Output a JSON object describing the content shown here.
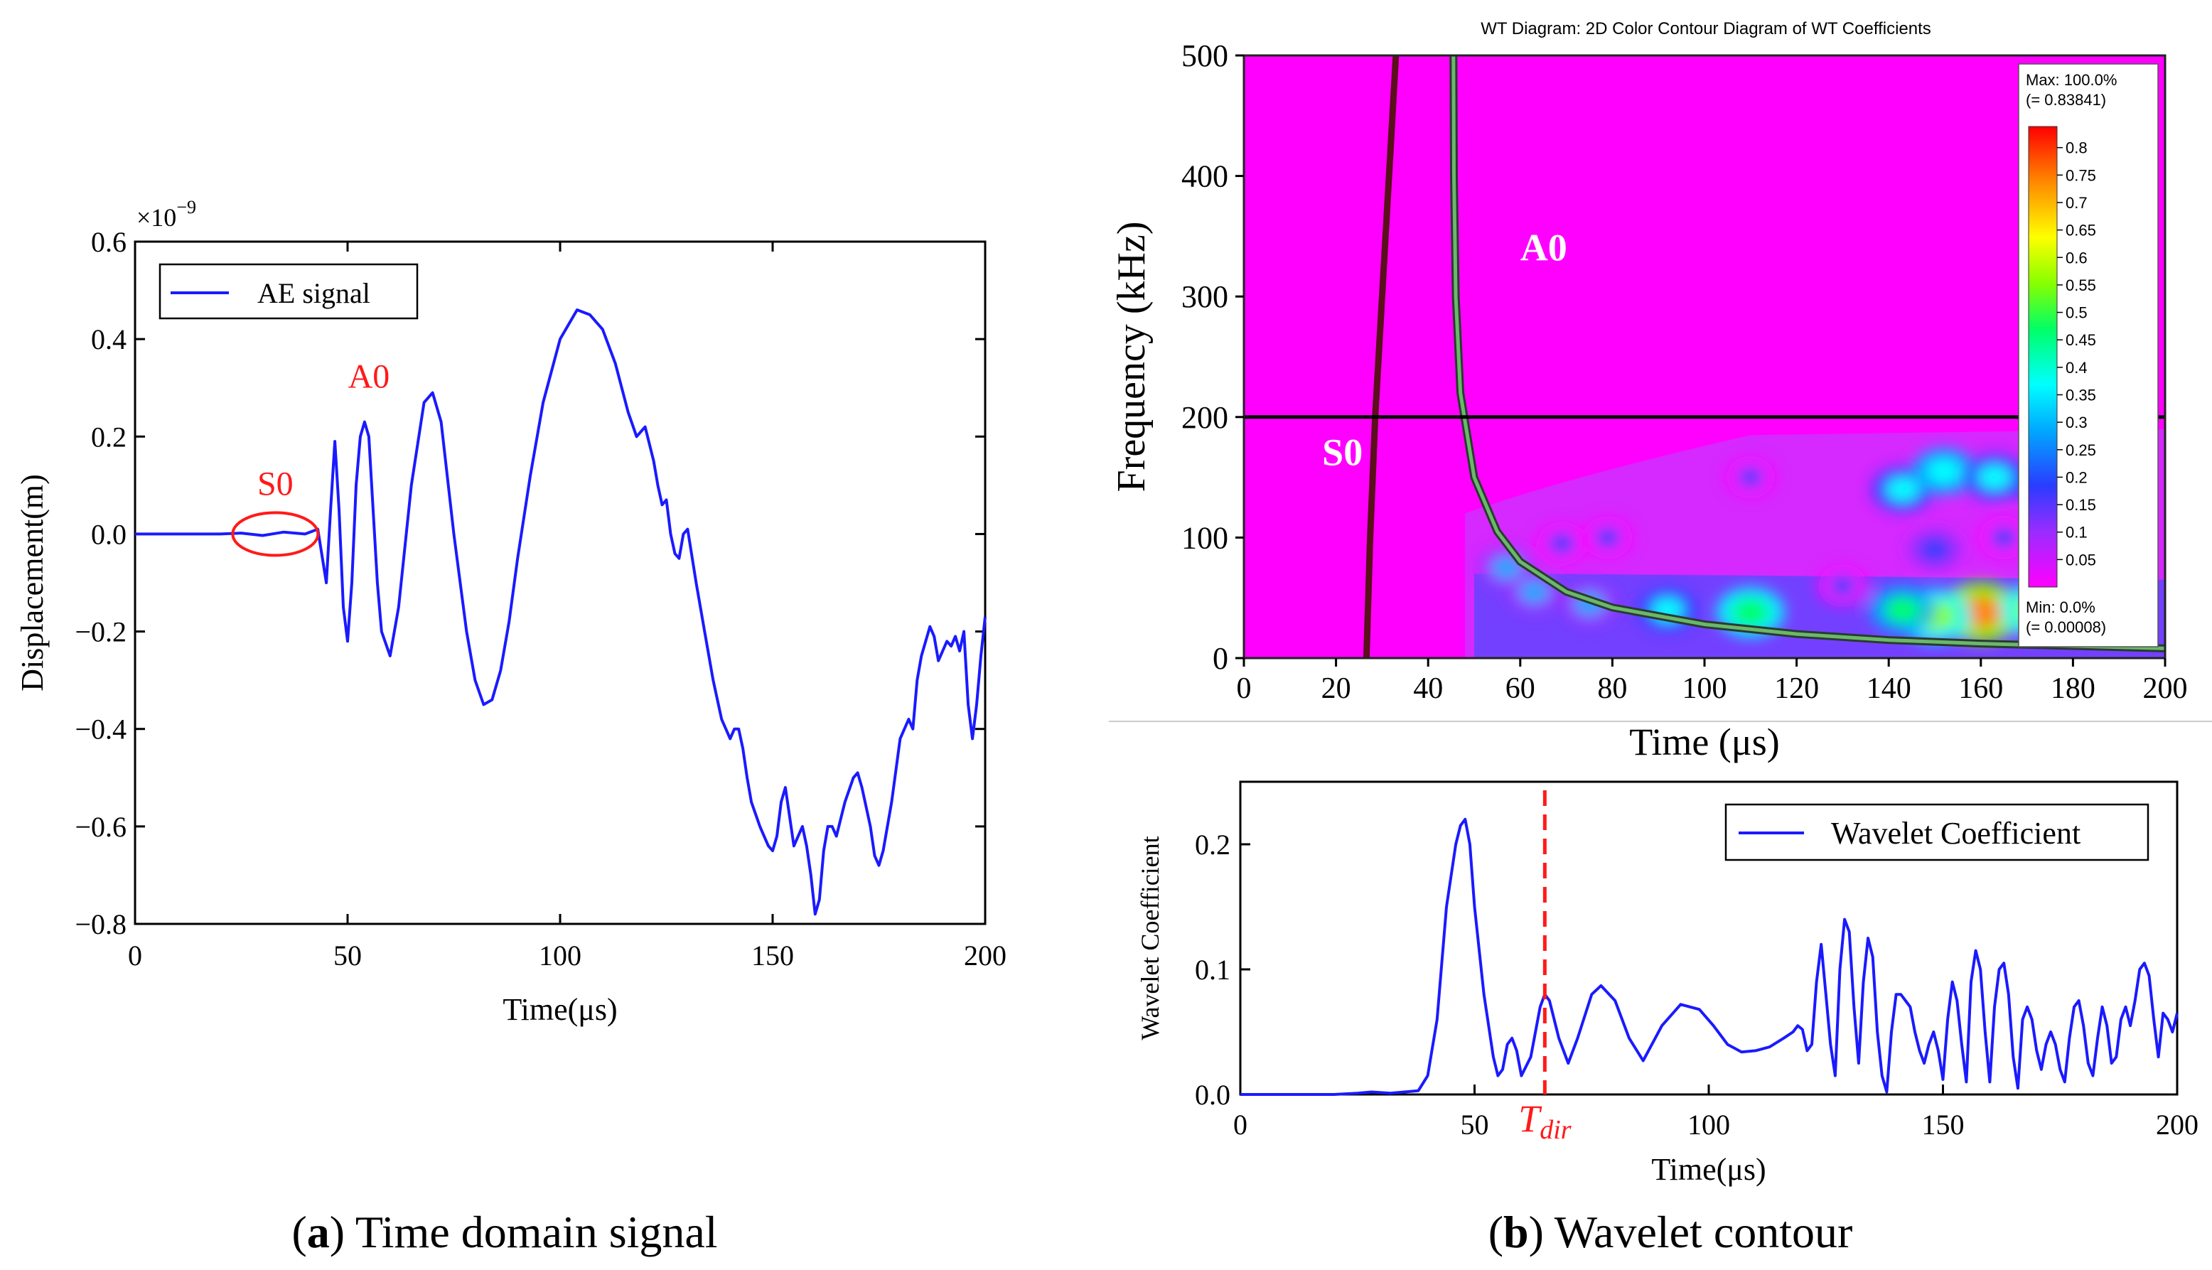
{
  "captions": {
    "a_letter": "a",
    "a_text": " Time domain signal",
    "b_letter": "b",
    "b_text": " Wavelet contour"
  },
  "chart_data": [
    {
      "id": "time_domain",
      "type": "line",
      "xlabel": "Time(μs)",
      "ylabel": "Displacement(m)",
      "exponent_label": "×10",
      "exponent_power": "−9",
      "xlim": [
        0,
        200
      ],
      "ylim": [
        -0.8,
        0.6
      ],
      "xticks": [
        0,
        50,
        100,
        150,
        200
      ],
      "yticks": [
        -0.8,
        -0.6,
        -0.4,
        -0.2,
        0.0,
        0.2,
        0.4,
        0.6
      ],
      "xtick_labels": [
        "0",
        "50",
        "100",
        "150",
        "200"
      ],
      "ytick_labels": [
        "−0.8",
        "−0.6",
        "−0.4",
        "−0.2",
        "0.0",
        "0.2",
        "0.4",
        "0.6"
      ],
      "grid": false,
      "legend": "top-left",
      "line_color": "#1a1aff",
      "annotation_color": "#ff1a1a",
      "annotations": [
        {
          "text": "S0",
          "x": 33,
          "y": 0.08
        },
        {
          "text": "A0",
          "x": 55,
          "y": 0.3
        }
      ],
      "ellipse_center": [
        33,
        0.0
      ],
      "series": [
        {
          "name": "AE signal",
          "x": [
            0,
            10,
            20,
            25,
            30,
            35,
            40,
            43,
            45,
            46,
            47,
            48,
            49,
            50,
            51,
            52,
            53,
            54,
            55,
            56,
            57,
            58,
            60,
            62,
            65,
            68,
            70,
            72,
            75,
            78,
            80,
            82,
            84,
            86,
            88,
            90,
            93,
            96,
            100,
            104,
            107,
            110,
            113,
            116,
            118,
            120,
            122,
            123,
            124,
            125,
            126,
            127,
            128,
            129,
            130,
            132,
            134,
            136,
            138,
            140,
            141,
            142,
            143,
            144,
            145,
            147,
            148,
            149,
            150,
            151,
            152,
            153,
            154,
            155,
            156,
            157,
            158,
            159,
            160,
            161,
            162,
            163,
            164,
            165,
            167,
            169,
            170,
            171,
            173,
            174,
            175,
            176,
            178,
            180,
            182,
            183,
            184,
            185,
            186,
            187,
            188,
            189,
            190,
            191,
            192,
            193,
            194,
            195,
            196,
            197,
            198,
            199,
            200
          ],
          "y": [
            0,
            0,
            0,
            0.002,
            -0.003,
            0.004,
            0.0,
            0.01,
            -0.1,
            0.05,
            0.19,
            0.05,
            -0.15,
            -0.22,
            -0.1,
            0.1,
            0.2,
            0.23,
            0.2,
            0.05,
            -0.1,
            -0.2,
            -0.25,
            -0.15,
            0.1,
            0.27,
            0.29,
            0.23,
            0.0,
            -0.2,
            -0.3,
            -0.35,
            -0.34,
            -0.28,
            -0.18,
            -0.05,
            0.12,
            0.27,
            0.4,
            0.46,
            0.45,
            0.42,
            0.35,
            0.25,
            0.2,
            0.22,
            0.15,
            0.1,
            0.06,
            0.07,
            0.0,
            -0.04,
            -0.05,
            0.0,
            0.01,
            -0.1,
            -0.2,
            -0.3,
            -0.38,
            -0.42,
            -0.4,
            -0.4,
            -0.44,
            -0.5,
            -0.55,
            -0.6,
            -0.62,
            -0.64,
            -0.65,
            -0.62,
            -0.55,
            -0.52,
            -0.58,
            -0.64,
            -0.62,
            -0.6,
            -0.64,
            -0.7,
            -0.78,
            -0.75,
            -0.65,
            -0.6,
            -0.6,
            -0.62,
            -0.55,
            -0.5,
            -0.49,
            -0.52,
            -0.6,
            -0.66,
            -0.68,
            -0.65,
            -0.55,
            -0.42,
            -0.38,
            -0.4,
            -0.3,
            -0.25,
            -0.22,
            -0.19,
            -0.21,
            -0.26,
            -0.24,
            -0.22,
            -0.23,
            -0.21,
            -0.24,
            -0.2,
            -0.35,
            -0.42,
            -0.35,
            -0.25,
            -0.17
          ]
        }
      ]
    },
    {
      "id": "wavelet_contour",
      "type": "heatmap",
      "title": "WT Diagram: 2D Color Contour Diagram of WT Coefficients",
      "xlabel": "Time (μs)",
      "ylabel": "Frequency (kHz)",
      "xlim": [
        0,
        200
      ],
      "ylim": [
        0,
        500
      ],
      "xticks": [
        0,
        20,
        40,
        60,
        80,
        100,
        120,
        140,
        160,
        180,
        200
      ],
      "yticks": [
        0,
        100,
        200,
        300,
        400,
        500
      ],
      "xtick_labels": [
        "0",
        "20",
        "40",
        "60",
        "80",
        "100",
        "120",
        "140",
        "160",
        "180",
        "200"
      ],
      "ytick_labels": [
        "0",
        "100",
        "200",
        "300",
        "400",
        "500"
      ],
      "colorbar": {
        "max_label": "Max: 100.0%",
        "max_value": "(= 0.83841)",
        "min_label": "Min: 0.0%",
        "min_value": "(= 0.00008)",
        "ticks": [
          "0.8",
          "0.75",
          "0.7",
          "0.65",
          "0.6",
          "0.55",
          "0.5",
          "0.45",
          "0.4",
          "0.35",
          "0.3",
          "0.25",
          "0.2",
          "0.15",
          "0.1",
          "0.05"
        ]
      },
      "mode_labels": [
        {
          "text": "A0",
          "x": 60,
          "y": 330
        },
        {
          "text": "S0",
          "x": 17,
          "y": 160
        }
      ],
      "reference_frequency_khz": 200,
      "s0_curve": {
        "t": [
          26.6,
          27.4,
          28.5,
          30.0,
          31.8,
          33.0
        ],
        "f": [
          0,
          100,
          200,
          300,
          420,
          500
        ]
      },
      "a0_curve": {
        "t": [
          45.5,
          45.6,
          46.0,
          47.0,
          50.0,
          55.0,
          60.0,
          70.0,
          80.0,
          100.0,
          120.0,
          140.0,
          160.0,
          180.0,
          200.0
        ],
        "f": [
          500,
          400,
          300,
          220,
          150,
          105,
          80,
          55,
          42,
          28,
          20,
          15,
          12,
          10,
          8
        ]
      },
      "hotspots": [
        {
          "t": 160,
          "f": 38,
          "v": 0.78
        },
        {
          "t": 150,
          "f": 35,
          "v": 0.6
        },
        {
          "t": 172,
          "f": 40,
          "v": 0.58
        },
        {
          "t": 143,
          "f": 40,
          "v": 0.45
        },
        {
          "t": 110,
          "f": 38,
          "v": 0.5
        },
        {
          "t": 92,
          "f": 40,
          "v": 0.35
        },
        {
          "t": 75,
          "f": 45,
          "v": 0.32
        },
        {
          "t": 63,
          "f": 55,
          "v": 0.3
        },
        {
          "t": 57,
          "f": 75,
          "v": 0.3
        },
        {
          "t": 69,
          "f": 95,
          "v": 0.22
        },
        {
          "t": 79,
          "f": 100,
          "v": 0.2
        },
        {
          "t": 110,
          "f": 150,
          "v": 0.18
        },
        {
          "t": 143,
          "f": 140,
          "v": 0.38
        },
        {
          "t": 152,
          "f": 155,
          "v": 0.42
        },
        {
          "t": 163,
          "f": 150,
          "v": 0.4
        },
        {
          "t": 174,
          "f": 145,
          "v": 0.35
        },
        {
          "t": 150,
          "f": 90,
          "v": 0.25
        },
        {
          "t": 165,
          "f": 100,
          "v": 0.22
        },
        {
          "t": 130,
          "f": 60,
          "v": 0.2
        }
      ]
    },
    {
      "id": "wavelet_coefficient",
      "type": "line",
      "xlabel": "Time(μs)",
      "ylabel": "Wavelet Coefficient",
      "xlim": [
        0,
        200
      ],
      "ylim": [
        0,
        0.25
      ],
      "xticks": [
        0,
        50,
        100,
        150,
        200
      ],
      "yticks": [
        0,
        0.1,
        0.2
      ],
      "xtick_labels": [
        "0",
        "50",
        "100",
        "150",
        "200"
      ],
      "ytick_labels": [
        "0.0",
        "0.1",
        "0.2"
      ],
      "legend": "top-right",
      "line_color": "#1a1aff",
      "marker": {
        "t": 65,
        "label_main": "T",
        "label_sub": "dir",
        "color": "#ff1a1a"
      },
      "series": [
        {
          "name": "Wavelet Coefficient",
          "x": [
            0,
            20,
            25,
            28,
            32,
            38,
            40,
            42,
            44,
            46,
            47,
            48,
            49,
            50,
            52,
            54,
            55,
            56,
            57,
            58,
            59,
            60,
            62,
            64,
            65,
            66,
            68,
            70,
            72,
            75,
            77,
            80,
            83,
            86,
            90,
            94,
            98,
            101,
            104,
            107,
            110,
            113,
            116,
            118,
            119,
            120,
            121,
            122,
            123,
            124,
            125,
            126,
            127,
            128,
            129,
            130,
            131,
            132,
            133,
            134,
            135,
            136,
            137,
            138,
            139,
            140,
            141,
            142,
            143,
            144,
            145,
            146,
            147,
            148,
            149,
            150,
            151,
            152,
            153,
            154,
            155,
            156,
            157,
            158,
            159,
            160,
            161,
            162,
            163,
            164,
            165,
            166,
            167,
            168,
            169,
            170,
            171,
            172,
            173,
            174,
            175,
            176,
            177,
            178,
            179,
            180,
            181,
            182,
            183,
            184,
            185,
            186,
            187,
            188,
            189,
            190,
            191,
            192,
            193,
            194,
            195,
            196,
            197,
            198,
            199,
            200
          ],
          "y": [
            0,
            0,
            0.001,
            0.002,
            0.001,
            0.003,
            0.015,
            0.06,
            0.15,
            0.2,
            0.215,
            0.22,
            0.2,
            0.15,
            0.08,
            0.03,
            0.015,
            0.02,
            0.04,
            0.045,
            0.035,
            0.015,
            0.03,
            0.07,
            0.08,
            0.075,
            0.045,
            0.025,
            0.045,
            0.08,
            0.087,
            0.075,
            0.045,
            0.027,
            0.055,
            0.072,
            0.068,
            0.055,
            0.04,
            0.034,
            0.035,
            0.038,
            0.045,
            0.05,
            0.055,
            0.052,
            0.035,
            0.04,
            0.09,
            0.12,
            0.08,
            0.04,
            0.015,
            0.1,
            0.14,
            0.13,
            0.07,
            0.025,
            0.09,
            0.125,
            0.11,
            0.05,
            0.015,
            0.002,
            0.05,
            0.08,
            0.08,
            0.075,
            0.07,
            0.05,
            0.035,
            0.025,
            0.04,
            0.05,
            0.035,
            0.012,
            0.06,
            0.09,
            0.075,
            0.04,
            0.01,
            0.09,
            0.115,
            0.1,
            0.05,
            0.01,
            0.07,
            0.1,
            0.105,
            0.08,
            0.03,
            0.005,
            0.06,
            0.07,
            0.06,
            0.035,
            0.02,
            0.04,
            0.05,
            0.04,
            0.02,
            0.01,
            0.045,
            0.07,
            0.075,
            0.055,
            0.025,
            0.015,
            0.045,
            0.07,
            0.055,
            0.025,
            0.03,
            0.06,
            0.07,
            0.055,
            0.075,
            0.1,
            0.105,
            0.095,
            0.06,
            0.03,
            0.065,
            0.06,
            0.05,
            0.065
          ]
        }
      ]
    }
  ]
}
